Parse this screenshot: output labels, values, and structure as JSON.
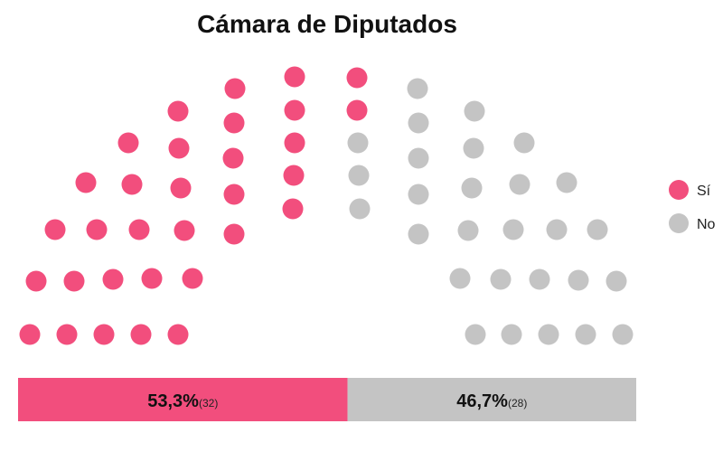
{
  "chart_data": {
    "type": "parliament",
    "title": "Cámara de Diputados",
    "total_seats": 60,
    "colors": {
      "si": "#f24e7d",
      "no": "#c4c4c4"
    },
    "legend": [
      {
        "name": "Sí",
        "color": "#f24e7d"
      },
      {
        "name": "No",
        "color": "#c4c4c4"
      }
    ],
    "series": [
      {
        "name": "Sí",
        "seats": 32,
        "percent_label": "53,3%",
        "count_label": "(32)",
        "percent": 53.3
      },
      {
        "name": "No",
        "seats": 28,
        "percent_label": "46,7%",
        "count_label": "(28)",
        "percent": 46.7
      }
    ],
    "legend_position": "right"
  }
}
